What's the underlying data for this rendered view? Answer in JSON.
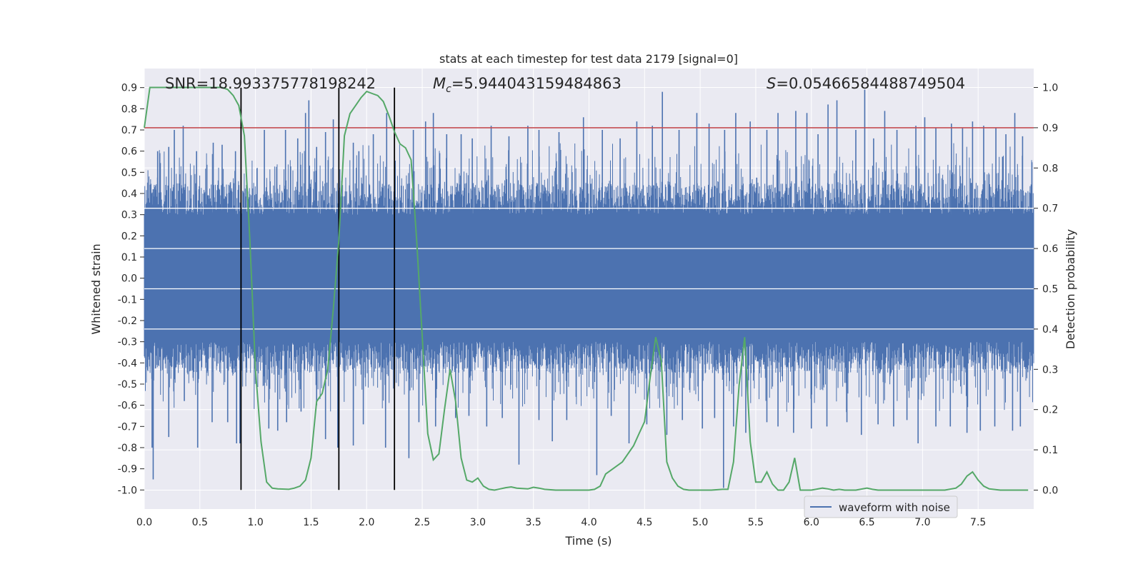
{
  "chart_data": {
    "type": "line",
    "title": "stats at each timestep for test data 2179 [signal=0]",
    "xlabel": "Time (s)",
    "ylabel": "Whitened strain",
    "y2label": "Detection probability",
    "xlim": [
      0.0,
      8.0
    ],
    "ylim": [
      -1.09,
      0.99
    ],
    "y2lim": [
      -0.047,
      1.047
    ],
    "x_ticks": [
      "0.0",
      "0.5",
      "1.0",
      "1.5",
      "2.0",
      "2.5",
      "3.0",
      "3.5",
      "4.0",
      "4.5",
      "5.0",
      "5.5",
      "6.0",
      "6.5",
      "7.0",
      "7.5"
    ],
    "y_ticks": [
      "0.9",
      "0.8",
      "0.7",
      "0.6",
      "0.5",
      "0.4",
      "0.3",
      "0.2",
      "0.1",
      "0.0",
      "-0.1",
      "-0.2",
      "-0.3",
      "-0.4",
      "-0.5",
      "-0.6",
      "-0.7",
      "-0.8",
      "-0.9",
      "-1.0"
    ],
    "y2_ticks": [
      "1.0",
      "0.9",
      "0.8",
      "0.7",
      "0.6",
      "0.5",
      "0.4",
      "0.3",
      "0.2",
      "0.1",
      "0.0"
    ],
    "annotations": {
      "snr": "SNR=18.993375778198242",
      "mc_symbol": "M",
      "mc_sub": "c",
      "mc_value": "=5.944043159484863",
      "s_symbol": "S",
      "s_value": "=0.05466584488749504"
    },
    "threshold": {
      "value": 0.9,
      "axis": "right",
      "color": "#c44e52"
    },
    "vertical_lines": {
      "x": [
        0.87,
        1.75,
        2.25
      ],
      "color": "#000000",
      "y_range": [
        -1.0,
        0.9
      ]
    },
    "legend": {
      "entries": [
        "waveform with noise"
      ],
      "location": "lower right"
    },
    "grid": true,
    "series": [
      {
        "name": "waveform with noise",
        "axis": "left",
        "color": "#4c72b0",
        "style": "dense noise, core amplitude ~0.3, spikes to about 0.9 and -0.95",
        "spikes": [
          [
            0.08,
            0.42
          ],
          [
            0.12,
            0.6
          ],
          [
            0.22,
            0.62
          ],
          [
            0.27,
            0.7
          ],
          [
            0.35,
            0.72
          ],
          [
            0.47,
            0.6
          ],
          [
            0.62,
            0.64
          ],
          [
            0.7,
            0.63
          ],
          [
            0.82,
            0.6
          ],
          [
            1.08,
            0.7
          ],
          [
            1.27,
            0.7
          ],
          [
            1.38,
            0.66
          ],
          [
            1.45,
            0.78
          ],
          [
            1.48,
            0.84
          ],
          [
            1.55,
            0.62
          ],
          [
            1.63,
            0.69
          ],
          [
            1.7,
            0.75
          ],
          [
            1.88,
            0.64
          ],
          [
            1.93,
            0.6
          ],
          [
            2.06,
            0.68
          ],
          [
            2.18,
            0.78
          ],
          [
            2.42,
            0.7
          ],
          [
            2.53,
            0.74
          ],
          [
            2.6,
            0.78
          ],
          [
            2.72,
            0.68
          ],
          [
            2.85,
            0.68
          ],
          [
            2.95,
            0.66
          ],
          [
            3.12,
            0.72
          ],
          [
            3.28,
            0.67
          ],
          [
            3.45,
            0.72
          ],
          [
            3.55,
            0.7
          ],
          [
            3.73,
            0.69
          ],
          [
            3.95,
            0.76
          ],
          [
            4.12,
            0.7
          ],
          [
            4.28,
            0.66
          ],
          [
            4.43,
            0.74
          ],
          [
            4.57,
            0.72
          ],
          [
            4.66,
            0.88
          ],
          [
            4.81,
            0.7
          ],
          [
            4.97,
            0.78
          ],
          [
            5.08,
            0.73
          ],
          [
            5.22,
            0.7
          ],
          [
            5.32,
            0.78
          ],
          [
            5.45,
            0.74
          ],
          [
            5.6,
            0.7
          ],
          [
            5.7,
            0.78
          ],
          [
            5.86,
            0.79
          ],
          [
            5.96,
            0.78
          ],
          [
            6.06,
            0.68
          ],
          [
            6.15,
            0.82
          ],
          [
            6.23,
            0.84
          ],
          [
            6.4,
            0.7
          ],
          [
            6.48,
            0.89
          ],
          [
            6.56,
            0.66
          ],
          [
            6.66,
            0.79
          ],
          [
            6.77,
            0.7
          ],
          [
            6.94,
            0.72
          ],
          [
            7.02,
            0.76
          ],
          [
            7.12,
            0.71
          ],
          [
            7.26,
            0.73
          ],
          [
            7.36,
            0.71
          ],
          [
            7.45,
            0.74
          ],
          [
            7.55,
            0.72
          ],
          [
            7.66,
            0.71
          ],
          [
            7.75,
            0.68
          ],
          [
            7.83,
            0.78
          ],
          [
            7.9,
            0.67
          ],
          [
            0.07,
            -0.8
          ],
          [
            0.08,
            -0.95
          ],
          [
            0.22,
            -0.75
          ],
          [
            0.36,
            -0.58
          ],
          [
            0.48,
            -0.8
          ],
          [
            0.61,
            -0.68
          ],
          [
            0.75,
            -0.68
          ],
          [
            0.83,
            -0.78
          ],
          [
            0.86,
            -0.78
          ],
          [
            1.12,
            -0.71
          ],
          [
            1.2,
            -0.72
          ],
          [
            1.28,
            -0.68
          ],
          [
            1.41,
            -0.63
          ],
          [
            1.55,
            -0.6
          ],
          [
            1.63,
            -0.76
          ],
          [
            1.74,
            -0.8
          ],
          [
            1.88,
            -0.79
          ],
          [
            1.97,
            -0.69
          ],
          [
            2.17,
            -0.8
          ],
          [
            2.38,
            -0.85
          ],
          [
            2.47,
            -0.68
          ],
          [
            2.62,
            -0.7
          ],
          [
            2.8,
            -0.66
          ],
          [
            2.92,
            -0.65
          ],
          [
            3.08,
            -0.7
          ],
          [
            3.22,
            -0.66
          ],
          [
            3.37,
            -0.88
          ],
          [
            3.55,
            -0.67
          ],
          [
            3.67,
            -0.77
          ],
          [
            3.8,
            -0.67
          ],
          [
            4.07,
            -0.93
          ],
          [
            4.2,
            -0.65
          ],
          [
            4.36,
            -0.78
          ],
          [
            4.52,
            -0.69
          ],
          [
            4.7,
            -0.74
          ],
          [
            4.84,
            -0.67
          ],
          [
            5.02,
            -0.71
          ],
          [
            5.13,
            -0.66
          ],
          [
            5.21,
            -0.99
          ],
          [
            5.3,
            -0.7
          ],
          [
            5.41,
            -0.73
          ],
          [
            5.6,
            -0.68
          ],
          [
            5.7,
            -0.7
          ],
          [
            5.84,
            -0.73
          ],
          [
            6.0,
            -0.71
          ],
          [
            6.14,
            -0.7
          ],
          [
            6.32,
            -0.68
          ],
          [
            6.45,
            -0.74
          ],
          [
            6.6,
            -0.69
          ],
          [
            6.74,
            -0.7
          ],
          [
            6.86,
            -0.67
          ],
          [
            6.96,
            -0.78
          ],
          [
            7.12,
            -0.7
          ],
          [
            7.25,
            -0.7
          ],
          [
            7.4,
            -0.73
          ],
          [
            7.52,
            -0.72
          ],
          [
            7.65,
            -0.7
          ],
          [
            7.81,
            -0.72
          ],
          [
            7.88,
            -0.7
          ]
        ]
      },
      {
        "name": "",
        "axis": "right",
        "color": "#55a868",
        "x": [
          0.0,
          0.05,
          0.1,
          0.2,
          0.3,
          0.4,
          0.5,
          0.6,
          0.7,
          0.75,
          0.8,
          0.85,
          0.9,
          0.95,
          1.0,
          1.05,
          1.1,
          1.15,
          1.2,
          1.3,
          1.35,
          1.4,
          1.45,
          1.5,
          1.55,
          1.6,
          1.65,
          1.7,
          1.75,
          1.8,
          1.85,
          1.9,
          1.95,
          2.0,
          2.05,
          2.1,
          2.15,
          2.2,
          2.25,
          2.3,
          2.35,
          2.4,
          2.45,
          2.5,
          2.55,
          2.6,
          2.65,
          2.7,
          2.75,
          2.8,
          2.85,
          2.9,
          2.95,
          3.0,
          3.05,
          3.1,
          3.15,
          3.2,
          3.25,
          3.3,
          3.35,
          3.4,
          3.45,
          3.5,
          3.55,
          3.6,
          3.7,
          3.8,
          3.9,
          4.0,
          4.05,
          4.1,
          4.15,
          4.2,
          4.3,
          4.35,
          4.4,
          4.45,
          4.5,
          4.55,
          4.6,
          4.65,
          4.7,
          4.75,
          4.8,
          4.85,
          4.9,
          5.0,
          5.1,
          5.2,
          5.25,
          5.3,
          5.35,
          5.4,
          5.45,
          5.5,
          5.55,
          5.6,
          5.65,
          5.7,
          5.75,
          5.8,
          5.85,
          5.9,
          5.95,
          6.0,
          6.1,
          6.15,
          6.2,
          6.25,
          6.3,
          6.4,
          6.5,
          6.55,
          6.6,
          6.7,
          6.8,
          6.9,
          7.0,
          7.1,
          7.2,
          7.3,
          7.35,
          7.4,
          7.45,
          7.5,
          7.55,
          7.6,
          7.7,
          7.8,
          7.95
        ],
        "y": [
          0.9,
          1.0,
          1.0,
          1.0,
          1.0,
          1.0,
          1.0,
          1.0,
          1.0,
          0.995,
          0.98,
          0.955,
          0.88,
          0.62,
          0.3,
          0.12,
          0.02,
          0.005,
          0.003,
          0.002,
          0.005,
          0.01,
          0.025,
          0.08,
          0.22,
          0.24,
          0.3,
          0.45,
          0.62,
          0.88,
          0.935,
          0.955,
          0.975,
          0.99,
          0.985,
          0.98,
          0.965,
          0.93,
          0.89,
          0.86,
          0.85,
          0.82,
          0.62,
          0.38,
          0.14,
          0.075,
          0.09,
          0.2,
          0.3,
          0.22,
          0.08,
          0.025,
          0.02,
          0.03,
          0.01,
          0.002,
          0.0,
          0.003,
          0.006,
          0.008,
          0.005,
          0.004,
          0.003,
          0.007,
          0.005,
          0.002,
          0.0,
          0.0,
          0.0,
          0.0,
          0.002,
          0.01,
          0.04,
          0.05,
          0.07,
          0.09,
          0.11,
          0.14,
          0.17,
          0.28,
          0.38,
          0.32,
          0.07,
          0.03,
          0.01,
          0.002,
          0.0,
          0.0,
          0.0,
          0.002,
          0.002,
          0.07,
          0.26,
          0.38,
          0.12,
          0.02,
          0.02,
          0.045,
          0.015,
          0.0,
          0.0,
          0.02,
          0.08,
          0.0,
          0.0,
          0.0,
          0.005,
          0.003,
          0.0,
          0.002,
          0.0,
          0.0,
          0.005,
          0.002,
          0.0,
          0.0,
          0.0,
          0.0,
          0.0,
          0.0,
          0.0,
          0.005,
          0.015,
          0.035,
          0.045,
          0.025,
          0.01,
          0.003,
          0.0,
          0.0,
          0.0
        ]
      }
    ]
  }
}
